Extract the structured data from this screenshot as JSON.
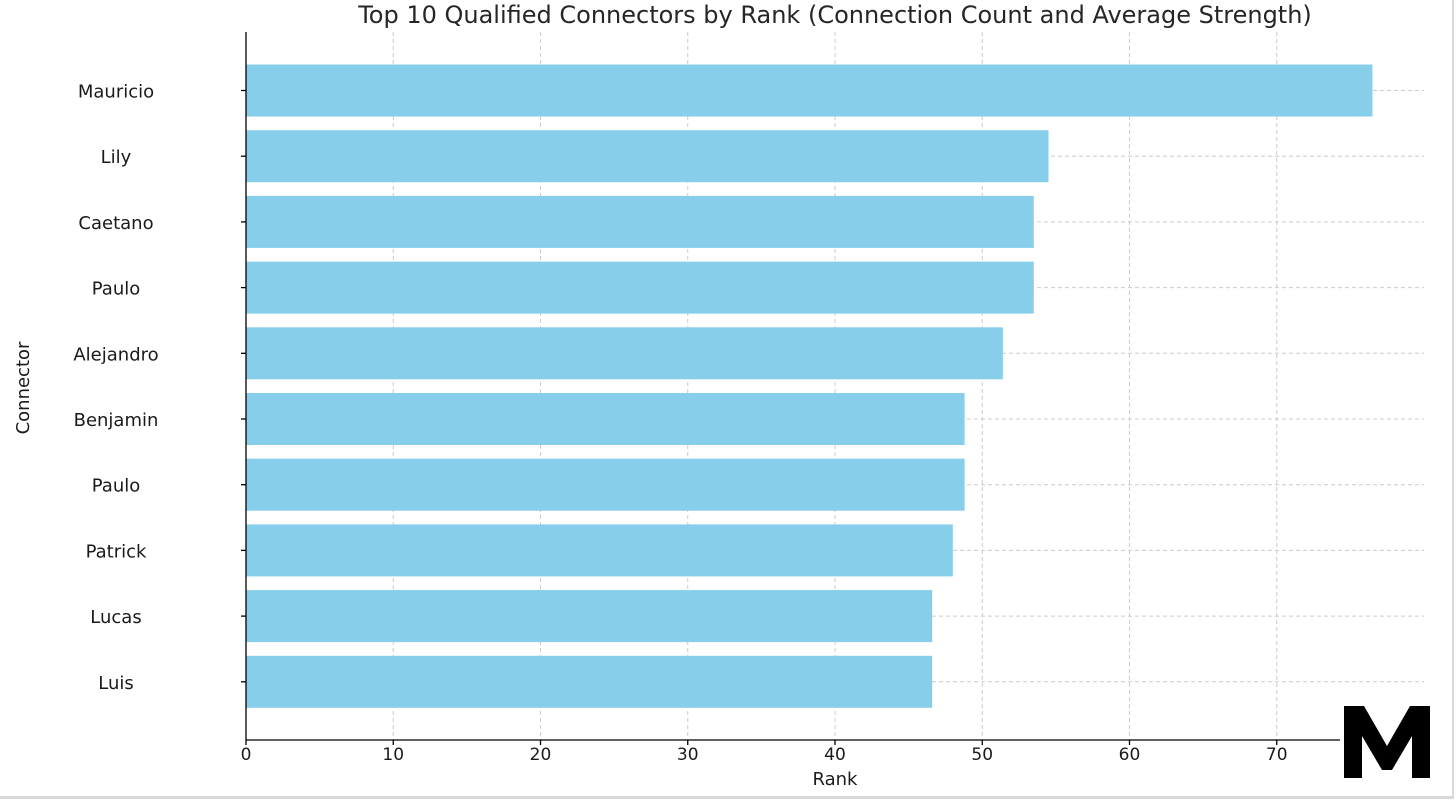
{
  "chart_data": {
    "type": "bar",
    "orientation": "horizontal",
    "title": "Top 10 Qualified Connectors by Rank (Connection Count and Average Strength)",
    "xlabel": "Rank",
    "ylabel": "Connector",
    "categories": [
      "Mauricio",
      "Lily",
      "Caetano",
      "Paulo",
      "Alejandro",
      "Benjamin",
      "Paulo",
      "Patrick",
      "Lucas",
      "Luis"
    ],
    "values": [
      76.5,
      54.5,
      53.5,
      53.5,
      51.4,
      48.8,
      48.8,
      48.0,
      46.6,
      46.6
    ],
    "xlim": [
      0,
      80
    ],
    "xticks": [
      0,
      10,
      20,
      30,
      40,
      50,
      60,
      70
    ],
    "grid": true,
    "bar_color": "#87ceeb"
  },
  "logo": {
    "text": "M"
  }
}
